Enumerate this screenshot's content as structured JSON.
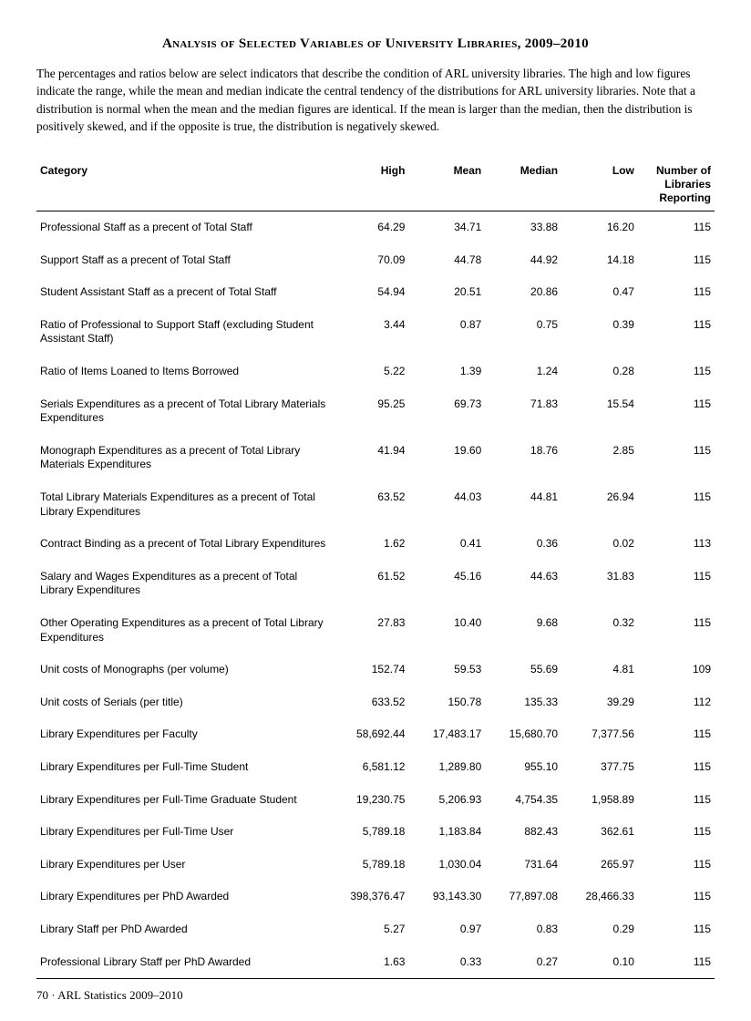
{
  "title": "Analysis of Selected Variables of University Libraries, 2009–2010",
  "intro": "The percentages and ratios below are select indicators that describe the condition of ARL university libraries. The high and low figures indicate the range, while the mean and median indicate the central tendency of the distributions for ARL university libraries. Note that a distribution is normal when the mean and the median figures are identical. If the mean is larger than the median, then the distribution is positively skewed, and if the opposite is true, the distribution is negatively skewed.",
  "columns": [
    "Category",
    "High",
    "Mean",
    "Median",
    "Low",
    "Number of Libraries Reporting"
  ],
  "rows": [
    {
      "cat": "Professional Staff as a precent of Total Staff",
      "high": "64.29",
      "mean": "34.71",
      "median": "33.88",
      "low": "16.20",
      "n": "115"
    },
    {
      "cat": "Support Staff as a precent of Total Staff",
      "high": "70.09",
      "mean": "44.78",
      "median": "44.92",
      "low": "14.18",
      "n": "115"
    },
    {
      "cat": "Student Assistant Staff as a precent of Total Staff",
      "high": "54.94",
      "mean": "20.51",
      "median": "20.86",
      "low": "0.47",
      "n": "115"
    },
    {
      "cat": "Ratio of Professional to Support Staff (excluding Student Assistant Staff)",
      "high": "3.44",
      "mean": "0.87",
      "median": "0.75",
      "low": "0.39",
      "n": "115"
    },
    {
      "cat": "Ratio of Items Loaned to Items Borrowed",
      "high": "5.22",
      "mean": "1.39",
      "median": "1.24",
      "low": "0.28",
      "n": "115"
    },
    {
      "cat": "Serials Expenditures as a precent of Total Library Materials Expenditures",
      "high": "95.25",
      "mean": "69.73",
      "median": "71.83",
      "low": "15.54",
      "n": "115"
    },
    {
      "cat": "Monograph Expenditures as a precent of Total Library Materials Expenditures",
      "high": "41.94",
      "mean": "19.60",
      "median": "18.76",
      "low": "2.85",
      "n": "115"
    },
    {
      "cat": "Total Library Materials Expenditures as a precent of Total Library Expenditures",
      "high": "63.52",
      "mean": "44.03",
      "median": "44.81",
      "low": "26.94",
      "n": "115"
    },
    {
      "cat": "Contract Binding as a precent of Total Library Expenditures",
      "high": "1.62",
      "mean": "0.41",
      "median": "0.36",
      "low": "0.02",
      "n": "113"
    },
    {
      "cat": "Salary and Wages Expenditures as a precent of Total Library Expenditures",
      "high": "61.52",
      "mean": "45.16",
      "median": "44.63",
      "low": "31.83",
      "n": "115"
    },
    {
      "cat": "Other Operating Expenditures as a precent of Total Library Expenditures",
      "high": "27.83",
      "mean": "10.40",
      "median": "9.68",
      "low": "0.32",
      "n": "115"
    },
    {
      "cat": "Unit costs of Monographs (per volume)",
      "high": "152.74",
      "mean": "59.53",
      "median": "55.69",
      "low": "4.81",
      "n": "109"
    },
    {
      "cat": "Unit costs of Serials (per title)",
      "high": "633.52",
      "mean": "150.78",
      "median": "135.33",
      "low": "39.29",
      "n": "112"
    },
    {
      "cat": "Library Expenditures per Faculty",
      "high": "58,692.44",
      "mean": "17,483.17",
      "median": "15,680.70",
      "low": "7,377.56",
      "n": "115"
    },
    {
      "cat": "Library Expenditures per Full-Time Student",
      "high": "6,581.12",
      "mean": "1,289.80",
      "median": "955.10",
      "low": "377.75",
      "n": "115"
    },
    {
      "cat": "Library Expenditures per Full-Time Graduate Student",
      "high": "19,230.75",
      "mean": "5,206.93",
      "median": "4,754.35",
      "low": "1,958.89",
      "n": "115"
    },
    {
      "cat": "Library Expenditures per Full-Time User",
      "high": "5,789.18",
      "mean": "1,183.84",
      "median": "882.43",
      "low": "362.61",
      "n": "115"
    },
    {
      "cat": "Library Expenditures per User",
      "high": "5,789.18",
      "mean": "1,030.04",
      "median": "731.64",
      "low": "265.97",
      "n": "115"
    },
    {
      "cat": "Library Expenditures per PhD Awarded",
      "high": "398,376.47",
      "mean": "93,143.30",
      "median": "77,897.08",
      "low": "28,466.33",
      "n": "115"
    },
    {
      "cat": "Library Staff per PhD Awarded",
      "high": "5.27",
      "mean": "0.97",
      "median": "0.83",
      "low": "0.29",
      "n": "115"
    },
    {
      "cat": "Professional Library Staff per PhD Awarded",
      "high": "1.63",
      "mean": "0.33",
      "median": "0.27",
      "low": "0.10",
      "n": "115"
    }
  ],
  "footer": "70 · ARL Statistics 2009–2010"
}
